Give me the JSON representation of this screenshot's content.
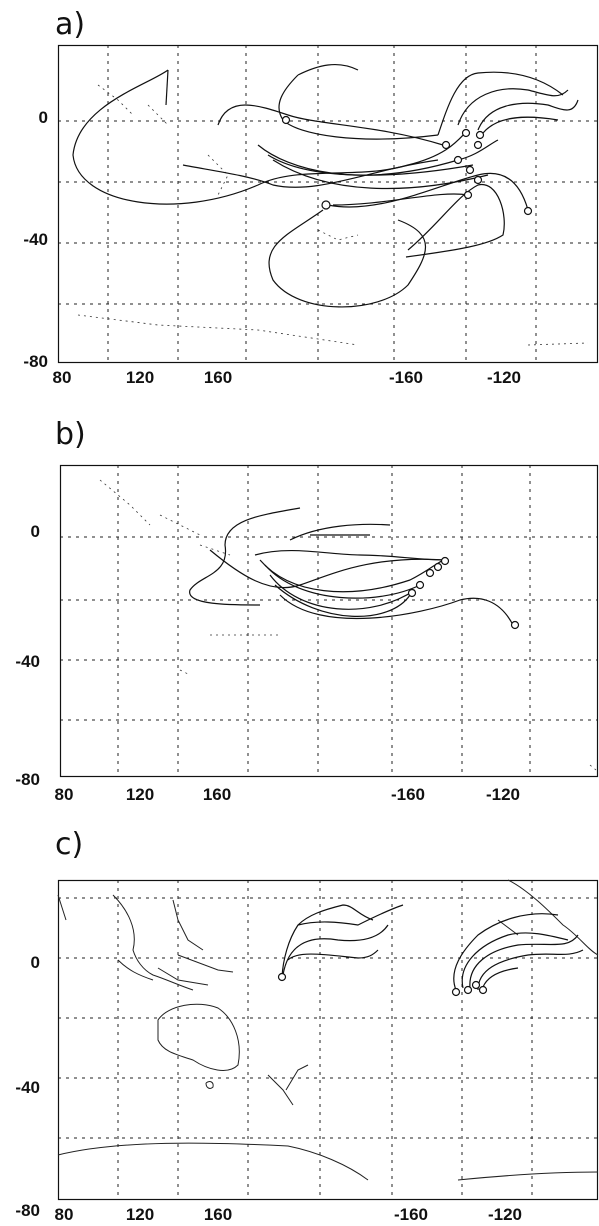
{
  "panels": [
    {
      "label": "a)",
      "content": "trajectories crossing the South Pacific from the central and eastern Pacific"
    },
    {
      "label": "b)",
      "content": "trajectories from the central Pacific toward the western Pacific"
    },
    {
      "label": "c)",
      "content": "trajectories over the equatorial Pacific, with coastlines"
    }
  ],
  "axes": {
    "x_ticks": [
      "80",
      "120",
      "160",
      "-160",
      "-120"
    ],
    "y_ticks": [
      "0",
      "-40",
      "-80"
    ]
  },
  "colors": {
    "line": "#111111",
    "grid": "#222222",
    "coast": "#333333"
  }
}
